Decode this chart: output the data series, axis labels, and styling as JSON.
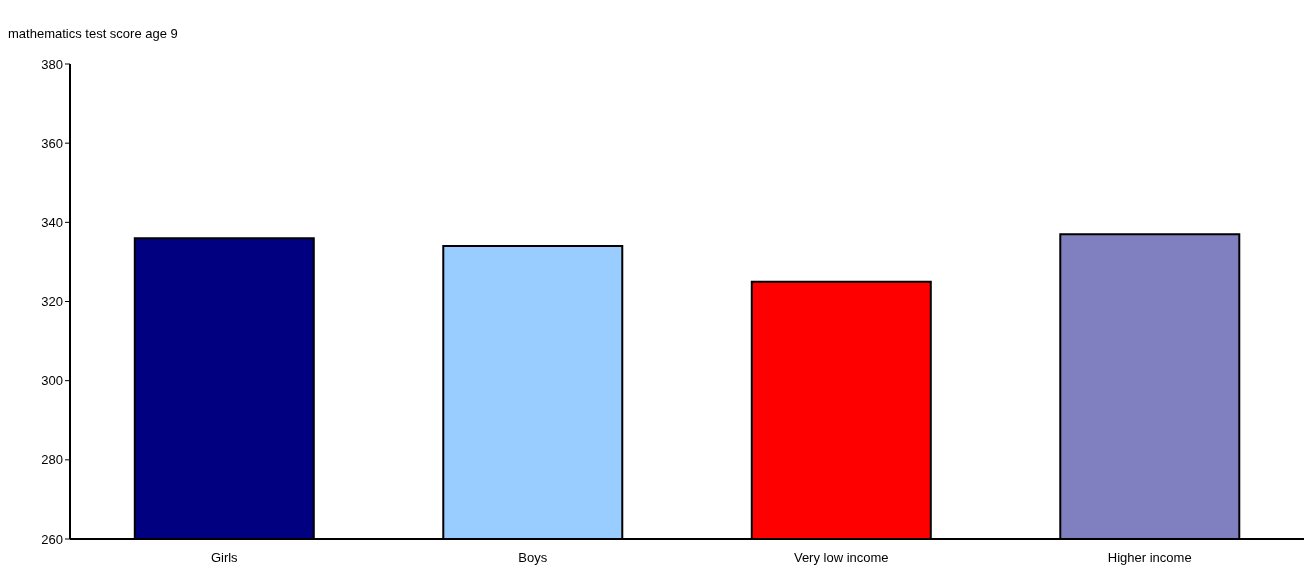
{
  "chart_data": {
    "type": "bar",
    "title": "mathematics test score age 9",
    "categories": [
      "Girls",
      "Boys",
      "Very low income",
      "Higher income"
    ],
    "values": [
      336,
      334,
      325,
      337
    ],
    "colors": [
      "#000080",
      "#99ccff",
      "#ff0000",
      "#8080c0"
    ],
    "ylim": [
      260,
      380
    ],
    "yticks": [
      260,
      280,
      300,
      320,
      340,
      360,
      380
    ],
    "grid": false
  }
}
